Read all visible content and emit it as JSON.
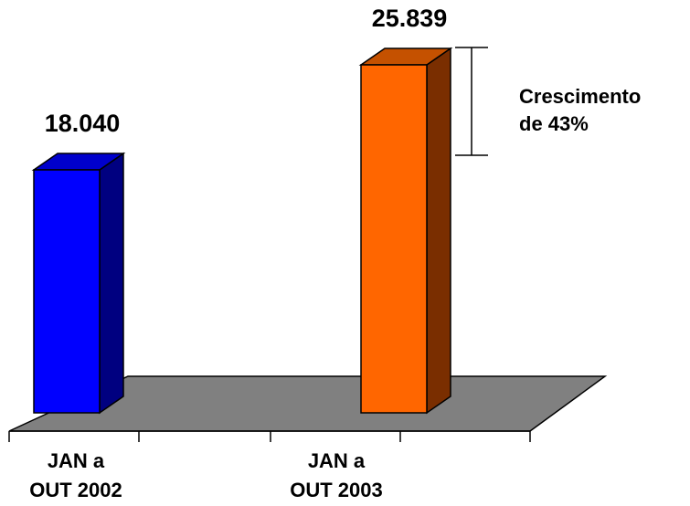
{
  "chart_data": {
    "type": "bar",
    "style": "3d",
    "categories": [
      [
        "JAN a",
        "OUT 2002"
      ],
      [
        "JAN a",
        "OUT 2003"
      ]
    ],
    "values": [
      18040,
      25839
    ],
    "value_labels": [
      "18.040",
      "25.839"
    ],
    "bar_colors": [
      "#0000ff",
      "#ff6600"
    ],
    "bar_side_colors": [
      "#000080",
      "#7a2e00"
    ],
    "bar_top_colors": [
      "#0000cc",
      "#c55100"
    ],
    "floor_color": "#808080",
    "grid": false,
    "legend": "none",
    "title": "",
    "xlabel": "",
    "ylabel": "",
    "annotation": {
      "lines": [
        "Crescimento",
        "de 43%"
      ],
      "between": [
        0,
        1
      ]
    }
  }
}
